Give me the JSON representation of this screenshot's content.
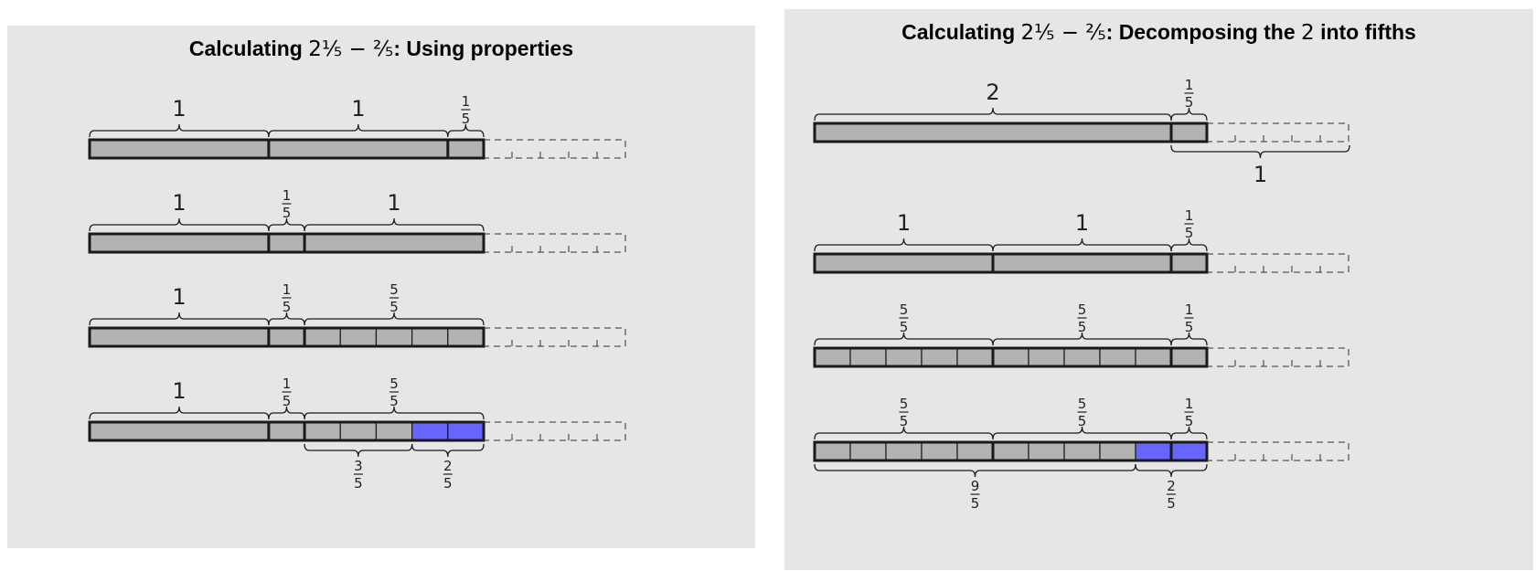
{
  "left_panel": {
    "title_prefix": "Calculating",
    "title_expr": "2⅕ − ⅖",
    "title_suffix": ": Using properties",
    "rows": [
      {
        "cells": [
          5,
          5,
          1
        ],
        "highlight": [],
        "top_labels": [
          "1",
          "1",
          "1/5"
        ],
        "bottom_labels": []
      },
      {
        "cells": [
          5,
          1,
          5
        ],
        "highlight": [],
        "top_labels": [
          "1",
          "1/5",
          "1"
        ],
        "bottom_labels": []
      },
      {
        "cells": [
          5,
          1,
          1,
          1,
          1,
          1,
          1
        ],
        "highlight": [],
        "top_labels": [
          "1",
          "1/5",
          "5/5"
        ],
        "bottom_labels": []
      },
      {
        "cells": [
          5,
          1,
          1,
          1,
          1,
          1,
          1
        ],
        "highlight": [
          5,
          6
        ],
        "top_labels": [
          "1",
          "1/5",
          "5/5"
        ],
        "bottom_labels": [
          "3/5",
          "2/5"
        ]
      }
    ]
  },
  "right_panel": {
    "title_prefix": "Calculating",
    "title_expr": "2⅕ − ⅖",
    "title_suffix": ": Decomposing the",
    "title_num": "2",
    "title_end": "into fifths",
    "rows": [
      {
        "cells": [
          10,
          1
        ],
        "highlight": [],
        "top_labels": [
          "2",
          "1/5"
        ],
        "bottom_labels": [
          "1"
        ]
      },
      {
        "cells": [
          5,
          5,
          1
        ],
        "highlight": [],
        "top_labels": [
          "1",
          "1",
          "1/5"
        ],
        "bottom_labels": []
      },
      {
        "cells": [
          1,
          1,
          1,
          1,
          1,
          1,
          1,
          1,
          1,
          1,
          1
        ],
        "highlight": [],
        "top_labels": [
          "5/5",
          "5/5",
          "1/5"
        ],
        "bottom_labels": []
      },
      {
        "cells": [
          1,
          1,
          1,
          1,
          1,
          1,
          1,
          1,
          1,
          1,
          1
        ],
        "highlight": [
          9,
          10
        ],
        "top_labels": [
          "5/5",
          "5/5",
          "1/5"
        ],
        "bottom_labels": [
          "9/5",
          "2/5"
        ]
      }
    ]
  },
  "colors": {
    "bar_fill": "#b3b3b3",
    "highlight": "#6666ff",
    "panel_bg": "#e6e6e6",
    "stroke": "#1a1a1a"
  }
}
